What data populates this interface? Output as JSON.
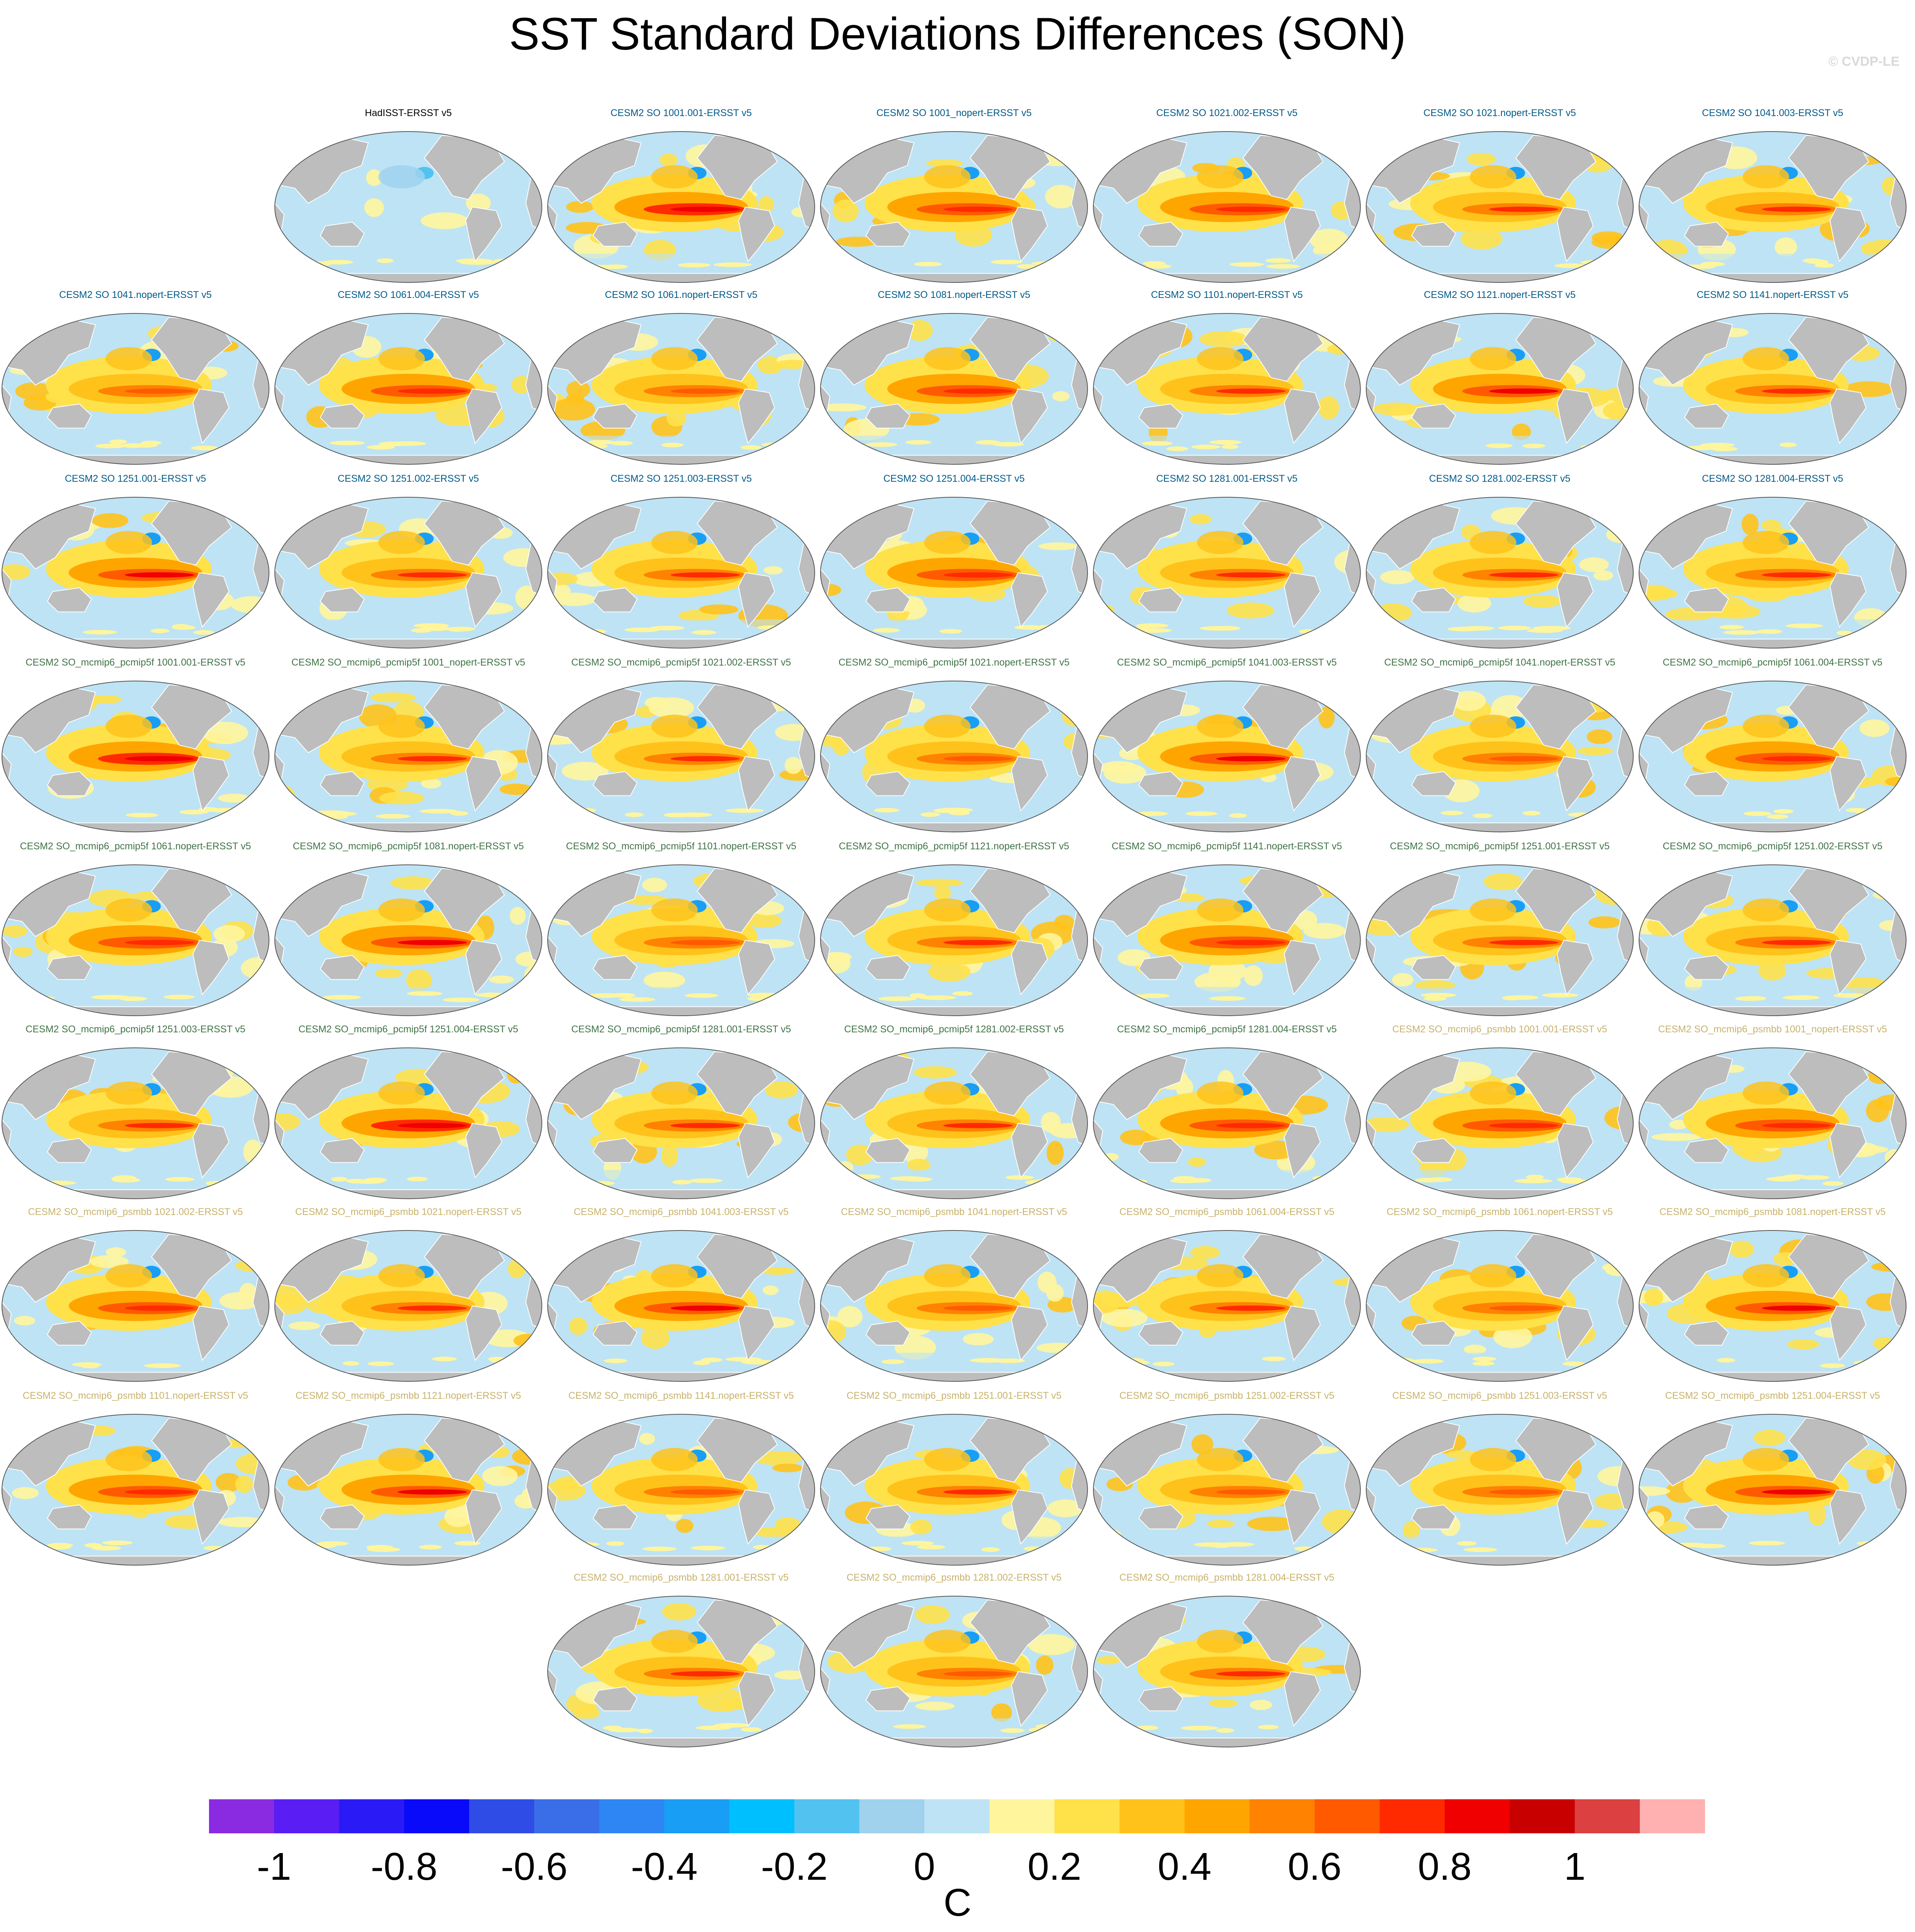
{
  "title": "SST Standard Deviations Differences (SON)",
  "credit": "© CVDP-LE",
  "colors": {
    "land": "#bdbdbd",
    "ocean_base": "#bde3f5",
    "title_obs": "#000000",
    "title_cesm2": "#005a87",
    "title_pcmip5f": "#3f7345",
    "title_psmbb": "#c8b26a"
  },
  "chart_data": {
    "type": "heatmap",
    "title": "SST Standard Deviations Differences (SON)",
    "projection": "Robinson (global map panels)",
    "units": "C",
    "levels": [
      -1.1,
      -1.0,
      -0.9,
      -0.8,
      -0.7,
      -0.6,
      -0.5,
      -0.4,
      -0.3,
      -0.2,
      -0.1,
      0,
      0.1,
      0.2,
      0.3,
      0.4,
      0.5,
      0.6,
      0.7,
      0.8,
      0.9,
      1.0,
      1.1
    ],
    "colorbar_colors": [
      "#8a2be2",
      "#5a1ef5",
      "#2a1bf6",
      "#0a0afa",
      "#2f4ce6",
      "#3a6ee8",
      "#2e86f5",
      "#189ef5",
      "#00bfff",
      "#52c3f0",
      "#a0d2ee",
      "#bde3f5",
      "#fff59d",
      "#ffe14a",
      "#ffc21a",
      "#ffa500",
      "#ff8200",
      "#ff5a00",
      "#ff2a00",
      "#f00000",
      "#c80000",
      "#dc4040",
      "#ffb0b0"
    ],
    "colorbar_ticks": [
      "-1",
      "-0.8",
      "-0.6",
      "-0.4",
      "-0.2",
      "0",
      "0.2",
      "0.4",
      "0.6",
      "0.8",
      "1"
    ],
    "tick_values": [
      -1,
      -0.8,
      -0.6,
      -0.4,
      -0.2,
      0,
      0.2,
      0.4,
      0.6,
      0.8,
      1
    ],
    "panels": [
      {
        "label": "HadISST-ERSST v5",
        "group": "obs",
        "row": 0,
        "col": 1,
        "enso": 0.05,
        "north_pacific": -0.1
      },
      {
        "label": "CESM2 SO 1001.001-ERSST v5",
        "group": "cesm2",
        "row": 0,
        "col": 2,
        "enso": 0.85,
        "north_pacific": 0.3
      },
      {
        "label": "CESM2 SO 1001_nopert-ERSST v5",
        "group": "cesm2",
        "row": 0,
        "col": 3,
        "enso": 0.75,
        "north_pacific": 0.3
      },
      {
        "label": "CESM2 SO 1021.002-ERSST v5",
        "group": "cesm2",
        "row": 0,
        "col": 4,
        "enso": 0.75,
        "north_pacific": 0.3
      },
      {
        "label": "CESM2 SO 1021.nopert-ERSST v5",
        "group": "cesm2",
        "row": 0,
        "col": 5,
        "enso": 0.7,
        "north_pacific": 0.3
      },
      {
        "label": "CESM2 SO 1041.003-ERSST v5",
        "group": "cesm2",
        "row": 0,
        "col": 6,
        "enso": 0.7,
        "north_pacific": 0.3
      },
      {
        "label": "CESM2 SO 1041.nopert-ERSST v5",
        "group": "cesm2",
        "row": 1,
        "col": 0,
        "enso": 0.65,
        "north_pacific": 0.3
      },
      {
        "label": "CESM2 SO 1061.004-ERSST v5",
        "group": "cesm2",
        "row": 1,
        "col": 1,
        "enso": 0.75,
        "north_pacific": 0.3
      },
      {
        "label": "CESM2 SO 1061.nopert-ERSST v5",
        "group": "cesm2",
        "row": 1,
        "col": 2,
        "enso": 0.65,
        "north_pacific": 0.3
      },
      {
        "label": "CESM2 SO 1081.nopert-ERSST v5",
        "group": "cesm2",
        "row": 1,
        "col": 3,
        "enso": 0.75,
        "north_pacific": 0.3
      },
      {
        "label": "CESM2 SO 1101.nopert-ERSST v5",
        "group": "cesm2",
        "row": 1,
        "col": 4,
        "enso": 0.7,
        "north_pacific": 0.3
      },
      {
        "label": "CESM2 SO 1121.nopert-ERSST v5",
        "group": "cesm2",
        "row": 1,
        "col": 5,
        "enso": 0.8,
        "north_pacific": 0.3
      },
      {
        "label": "CESM2 SO 1141.nopert-ERSST v5",
        "group": "cesm2",
        "row": 1,
        "col": 6,
        "enso": 0.7,
        "north_pacific": 0.3
      },
      {
        "label": "CESM2 SO 1251.001-ERSST v5",
        "group": "cesm2",
        "row": 2,
        "col": 0,
        "enso": 0.8,
        "north_pacific": 0.3
      },
      {
        "label": "CESM2 SO 1251.002-ERSST v5",
        "group": "cesm2",
        "row": 2,
        "col": 1,
        "enso": 0.7,
        "north_pacific": 0.3
      },
      {
        "label": "CESM2 SO 1251.003-ERSST v5",
        "group": "cesm2",
        "row": 2,
        "col": 2,
        "enso": 0.7,
        "north_pacific": 0.3
      },
      {
        "label": "CESM2 SO 1251.004-ERSST v5",
        "group": "cesm2",
        "row": 2,
        "col": 3,
        "enso": 0.75,
        "north_pacific": 0.3
      },
      {
        "label": "CESM2 SO 1281.001-ERSST v5",
        "group": "cesm2",
        "row": 2,
        "col": 4,
        "enso": 0.7,
        "north_pacific": 0.3
      },
      {
        "label": "CESM2 SO 1281.002-ERSST v5",
        "group": "cesm2",
        "row": 2,
        "col": 5,
        "enso": 0.7,
        "north_pacific": 0.3
      },
      {
        "label": "CESM2 SO 1281.004-ERSST v5",
        "group": "cesm2",
        "row": 2,
        "col": 6,
        "enso": 0.7,
        "north_pacific": 0.3
      },
      {
        "label": "CESM2 SO_mcmip6_pcmip5f 1001.001-ERSST v5",
        "group": "pcmip5f",
        "row": 3,
        "col": 0,
        "enso": 0.85,
        "north_pacific": 0.3
      },
      {
        "label": "CESM2 SO_mcmip6_pcmip5f 1001_nopert-ERSST v5",
        "group": "pcmip5f",
        "row": 3,
        "col": 1,
        "enso": 0.7,
        "north_pacific": 0.3
      },
      {
        "label": "CESM2 SO_mcmip6_pcmip5f 1021.002-ERSST v5",
        "group": "pcmip5f",
        "row": 3,
        "col": 2,
        "enso": 0.7,
        "north_pacific": 0.3
      },
      {
        "label": "CESM2 SO_mcmip6_pcmip5f 1021.nopert-ERSST v5",
        "group": "pcmip5f",
        "row": 3,
        "col": 3,
        "enso": 0.65,
        "north_pacific": 0.3
      },
      {
        "label": "CESM2 SO_mcmip6_pcmip5f 1041.003-ERSST v5",
        "group": "pcmip5f",
        "row": 3,
        "col": 4,
        "enso": 0.8,
        "north_pacific": 0.3
      },
      {
        "label": "CESM2 SO_mcmip6_pcmip5f 1041.nopert-ERSST v5",
        "group": "pcmip5f",
        "row": 3,
        "col": 5,
        "enso": 0.65,
        "north_pacific": 0.3
      },
      {
        "label": "CESM2 SO_mcmip6_pcmip5f 1061.004-ERSST v5",
        "group": "pcmip5f",
        "row": 3,
        "col": 6,
        "enso": 0.75,
        "north_pacific": 0.3
      },
      {
        "label": "CESM2 SO_mcmip6_pcmip5f 1061.nopert-ERSST v5",
        "group": "pcmip5f",
        "row": 4,
        "col": 0,
        "enso": 0.75,
        "north_pacific": 0.3
      },
      {
        "label": "CESM2 SO_mcmip6_pcmip5f 1081.nopert-ERSST v5",
        "group": "pcmip5f",
        "row": 4,
        "col": 1,
        "enso": 0.8,
        "north_pacific": 0.3
      },
      {
        "label": "CESM2 SO_mcmip6_pcmip5f 1101.nopert-ERSST v5",
        "group": "pcmip5f",
        "row": 4,
        "col": 2,
        "enso": 0.65,
        "north_pacific": 0.3
      },
      {
        "label": "CESM2 SO_mcmip6_pcmip5f 1121.nopert-ERSST v5",
        "group": "pcmip5f",
        "row": 4,
        "col": 3,
        "enso": 0.7,
        "north_pacific": 0.3
      },
      {
        "label": "CESM2 SO_mcmip6_pcmip5f 1141.nopert-ERSST v5",
        "group": "pcmip5f",
        "row": 4,
        "col": 4,
        "enso": 0.75,
        "north_pacific": 0.3
      },
      {
        "label": "CESM2 SO_mcmip6_pcmip5f 1251.001-ERSST v5",
        "group": "pcmip5f",
        "row": 4,
        "col": 5,
        "enso": 0.7,
        "north_pacific": 0.3
      },
      {
        "label": "CESM2 SO_mcmip6_pcmip5f 1251.002-ERSST v5",
        "group": "pcmip5f",
        "row": 4,
        "col": 6,
        "enso": 0.7,
        "north_pacific": 0.3
      },
      {
        "label": "CESM2 SO_mcmip6_pcmip5f 1251.003-ERSST v5",
        "group": "pcmip5f",
        "row": 5,
        "col": 0,
        "enso": 0.7,
        "north_pacific": 0.3
      },
      {
        "label": "CESM2 SO_mcmip6_pcmip5f 1251.004-ERSST v5",
        "group": "pcmip5f",
        "row": 5,
        "col": 1,
        "enso": 0.85,
        "north_pacific": 0.3
      },
      {
        "label": "CESM2 SO_mcmip6_pcmip5f 1281.001-ERSST v5",
        "group": "pcmip5f",
        "row": 5,
        "col": 2,
        "enso": 0.7,
        "north_pacific": 0.3
      },
      {
        "label": "CESM2 SO_mcmip6_pcmip5f 1281.002-ERSST v5",
        "group": "pcmip5f",
        "row": 5,
        "col": 3,
        "enso": 0.7,
        "north_pacific": 0.3
      },
      {
        "label": "CESM2 SO_mcmip6_pcmip5f 1281.004-ERSST v5",
        "group": "pcmip5f",
        "row": 5,
        "col": 4,
        "enso": 0.75,
        "north_pacific": 0.3
      },
      {
        "label": "CESM2 SO_mcmip6_psmbb 1001.001-ERSST v5",
        "group": "psmbb",
        "row": 5,
        "col": 5,
        "enso": 0.75,
        "north_pacific": 0.3
      },
      {
        "label": "CESM2 SO_mcmip6_psmbb 1001_nopert-ERSST v5",
        "group": "psmbb",
        "row": 5,
        "col": 6,
        "enso": 0.75,
        "north_pacific": 0.3
      },
      {
        "label": "CESM2 SO_mcmip6_psmbb 1021.002-ERSST v5",
        "group": "psmbb",
        "row": 6,
        "col": 0,
        "enso": 0.75,
        "north_pacific": 0.3
      },
      {
        "label": "CESM2 SO_mcmip6_psmbb 1021.nopert-ERSST v5",
        "group": "psmbb",
        "row": 6,
        "col": 1,
        "enso": 0.7,
        "north_pacific": 0.3
      },
      {
        "label": "CESM2 SO_mcmip6_psmbb 1041.003-ERSST v5",
        "group": "psmbb",
        "row": 6,
        "col": 2,
        "enso": 0.8,
        "north_pacific": 0.3
      },
      {
        "label": "CESM2 SO_mcmip6_psmbb 1041.nopert-ERSST v5",
        "group": "psmbb",
        "row": 6,
        "col": 3,
        "enso": 0.65,
        "north_pacific": 0.3
      },
      {
        "label": "CESM2 SO_mcmip6_psmbb 1061.004-ERSST v5",
        "group": "psmbb",
        "row": 6,
        "col": 4,
        "enso": 0.7,
        "north_pacific": 0.3
      },
      {
        "label": "CESM2 SO_mcmip6_psmbb 1061.nopert-ERSST v5",
        "group": "psmbb",
        "row": 6,
        "col": 5,
        "enso": 0.65,
        "north_pacific": 0.3
      },
      {
        "label": "CESM2 SO_mcmip6_psmbb 1081.nopert-ERSST v5",
        "group": "psmbb",
        "row": 6,
        "col": 6,
        "enso": 0.8,
        "north_pacific": 0.3
      },
      {
        "label": "CESM2 SO_mcmip6_psmbb 1101.nopert-ERSST v5",
        "group": "psmbb",
        "row": 7,
        "col": 0,
        "enso": 0.75,
        "north_pacific": 0.3
      },
      {
        "label": "CESM2 SO_mcmip6_psmbb 1121.nopert-ERSST v5",
        "group": "psmbb",
        "row": 7,
        "col": 1,
        "enso": 0.8,
        "north_pacific": 0.3
      },
      {
        "label": "CESM2 SO_mcmip6_psmbb 1141.nopert-ERSST v5",
        "group": "psmbb",
        "row": 7,
        "col": 2,
        "enso": 0.65,
        "north_pacific": 0.3
      },
      {
        "label": "CESM2 SO_mcmip6_psmbb 1251.001-ERSST v5",
        "group": "psmbb",
        "row": 7,
        "col": 3,
        "enso": 0.7,
        "north_pacific": 0.3
      },
      {
        "label": "CESM2 SO_mcmip6_psmbb 1251.002-ERSST v5",
        "group": "psmbb",
        "row": 7,
        "col": 4,
        "enso": 0.65,
        "north_pacific": 0.3
      },
      {
        "label": "CESM2 SO_mcmip6_psmbb 1251.003-ERSST v5",
        "group": "psmbb",
        "row": 7,
        "col": 5,
        "enso": 0.65,
        "north_pacific": 0.3
      },
      {
        "label": "CESM2 SO_mcmip6_psmbb 1251.004-ERSST v5",
        "group": "psmbb",
        "row": 7,
        "col": 6,
        "enso": 0.8,
        "north_pacific": 0.3
      },
      {
        "label": "CESM2 SO_mcmip6_psmbb 1281.001-ERSST v5",
        "group": "psmbb",
        "row": 8,
        "col": 2,
        "enso": 0.7,
        "north_pacific": 0.3
      },
      {
        "label": "CESM2 SO_mcmip6_psmbb 1281.002-ERSST v5",
        "group": "psmbb",
        "row": 8,
        "col": 3,
        "enso": 0.65,
        "north_pacific": 0.3
      },
      {
        "label": "CESM2 SO_mcmip6_psmbb 1281.004-ERSST v5",
        "group": "psmbb",
        "row": 8,
        "col": 4,
        "enso": 0.7,
        "north_pacific": 0.3
      }
    ]
  }
}
